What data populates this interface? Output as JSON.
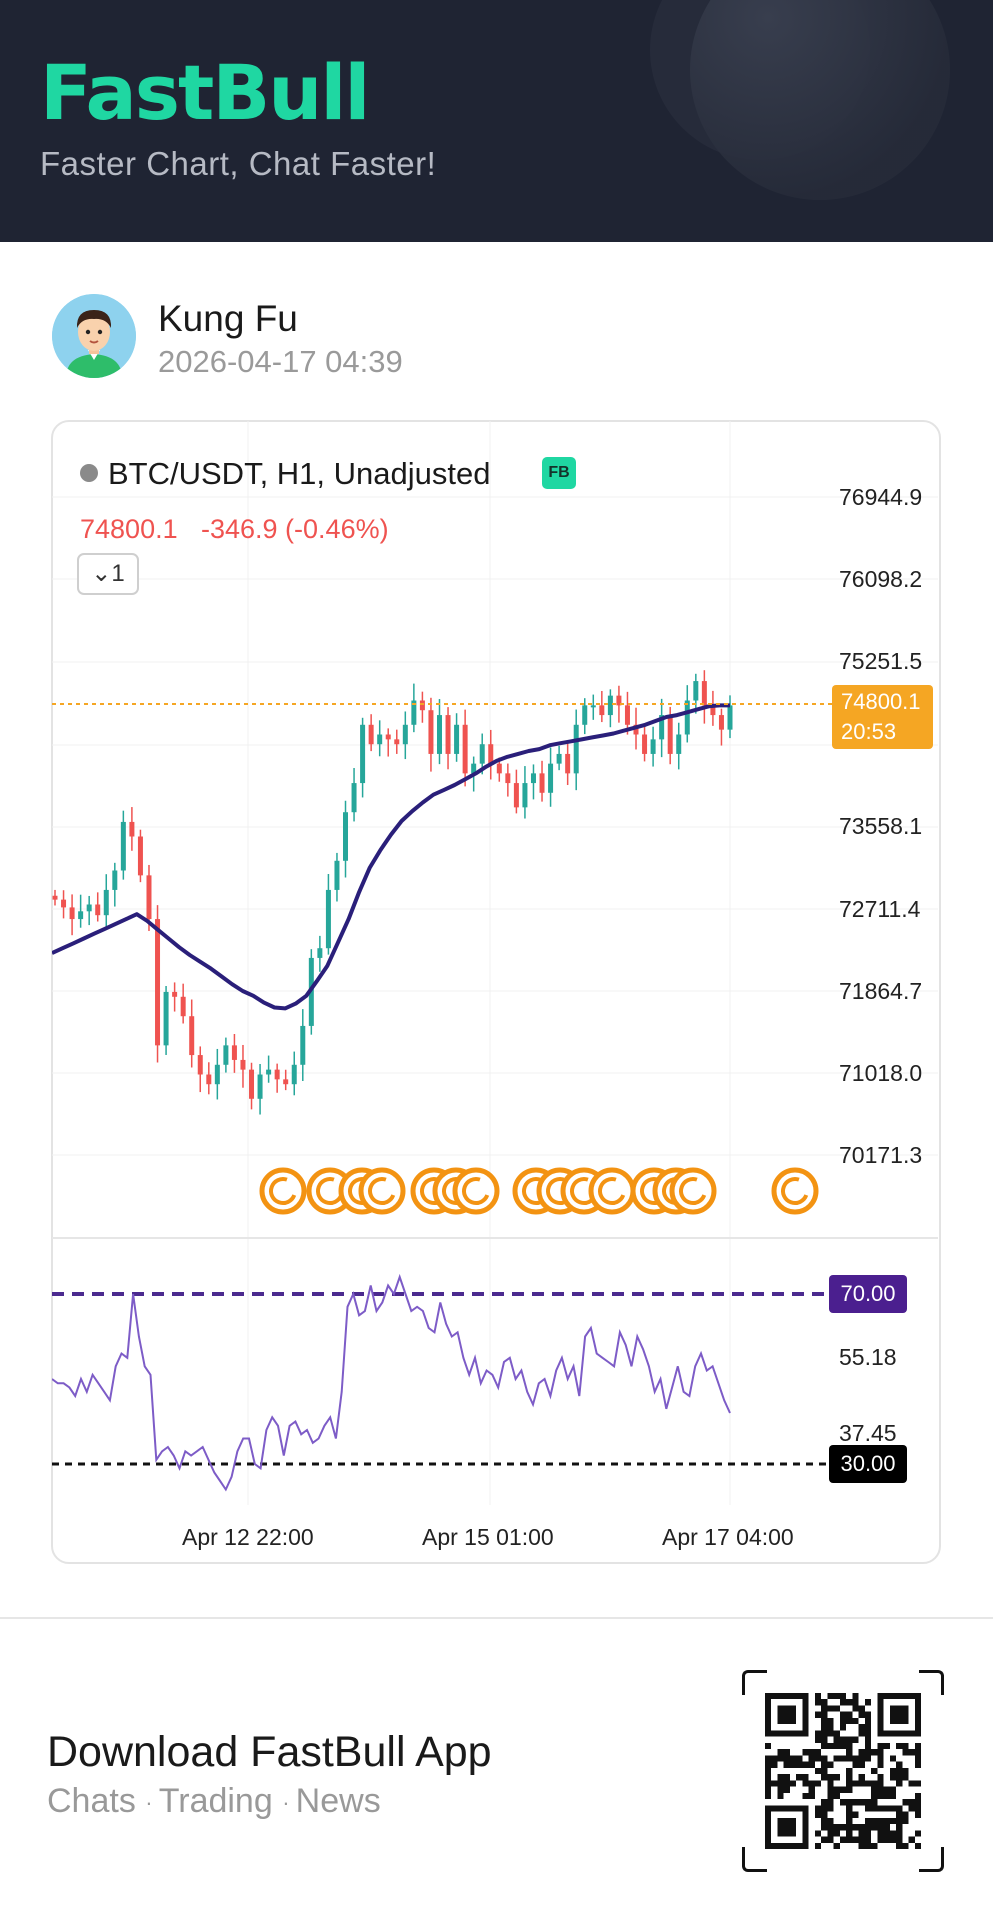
{
  "header": {
    "logo": "FastBull",
    "slogan": "Faster Chart, Chat Faster!"
  },
  "user": {
    "name": "Kung Fu",
    "time": "2026-04-17 04:39"
  },
  "chart": {
    "symbol": "BTC/USDT, H1, Unadjusted",
    "badge": "FB",
    "price": "74800.1",
    "change": "-346.9 (-0.46%)",
    "collapse_label": "1",
    "countdown": "20:53",
    "rsi_upper": "70.00",
    "rsi_lower": "30.00"
  },
  "chart_data": [
    {
      "type": "candlestick",
      "title": "BTC/USDT, H1, Unadjusted",
      "y_ticks": [
        "76944.9",
        "76098.2",
        "75251.5",
        "73558.1",
        "72711.4",
        "71864.7",
        "71018.0",
        "70171.3"
      ],
      "x_ticks": [
        "Apr 12 22:00",
        "Apr 15 01:00",
        "Apr 17 04:00"
      ],
      "ylim": [
        70171.3,
        76944.9
      ],
      "last_price": 74800.1,
      "ma_line_color": "#2a1f7a",
      "up_color": "#26a69a",
      "down_color": "#ef5350",
      "close_series": [
        72800,
        72720,
        72600,
        72680,
        72750,
        72640,
        72900,
        73100,
        73600,
        73450,
        73050,
        72600,
        71300,
        71850,
        71800,
        71600,
        71200,
        71000,
        70900,
        71100,
        71300,
        71150,
        71050,
        70750,
        71000,
        71050,
        70950,
        70900,
        71100,
        71500,
        72200,
        72300,
        72900,
        73200,
        73700,
        74000,
        74600,
        74400,
        74500,
        74450,
        74400,
        74600,
        74850,
        74750,
        74300,
        74700,
        74300,
        74600,
        74100,
        74200,
        74400,
        74200,
        74100,
        74000,
        73750,
        74000,
        74100,
        73900,
        74200,
        74300,
        74100,
        74600,
        74800,
        74800,
        74700,
        74900,
        74800,
        74600,
        74500,
        74300,
        74450,
        74700,
        74300,
        74500,
        74850,
        75050,
        74800,
        74700,
        74550,
        74800
      ],
      "ma_series": [
        72250,
        72300,
        72350,
        72400,
        72450,
        72500,
        72550,
        72600,
        72650,
        72580,
        72490,
        72400,
        72310,
        72230,
        72160,
        72090,
        72010,
        71930,
        71860,
        71810,
        71740,
        71690,
        71680,
        71730,
        71810,
        71960,
        72120,
        72360,
        72600,
        72880,
        73130,
        73310,
        73470,
        73610,
        73710,
        73800,
        73880,
        73930,
        73980,
        74040,
        74100,
        74170,
        74230,
        74270,
        74300,
        74330,
        74350,
        74390,
        74410,
        74430,
        74450,
        74470,
        74490,
        74510,
        74540,
        74570,
        74600,
        74640,
        74680,
        74700,
        74730,
        74760,
        74790,
        74800,
        74800
      ]
    },
    {
      "type": "line",
      "title": "RSI",
      "y_ticks": [
        "70.00",
        "55.18",
        "37.45",
        "30.00"
      ],
      "reference_lines": [
        70,
        30
      ],
      "line_color": "#7d5cc7",
      "values": [
        50,
        49,
        49,
        48,
        46,
        50,
        47,
        51,
        49,
        47,
        45,
        53,
        56,
        55,
        70,
        60,
        53,
        51,
        31,
        33,
        34,
        32,
        29,
        33,
        32,
        33,
        34,
        31,
        28,
        26,
        24,
        27,
        33,
        36,
        36,
        30,
        29,
        38,
        41,
        39,
        32,
        39,
        40,
        37,
        38,
        35,
        36,
        39,
        41,
        36,
        47,
        67,
        70,
        65,
        66,
        72,
        66,
        68,
        72,
        70,
        74,
        70,
        66,
        67,
        66,
        62,
        61,
        68,
        63,
        60,
        61,
        55,
        51,
        55,
        49,
        52,
        51,
        48,
        54,
        55,
        50,
        52,
        47,
        44,
        49,
        50,
        46,
        52,
        55,
        50,
        53,
        46,
        60,
        62,
        56,
        55,
        54,
        53,
        61,
        58,
        53,
        60,
        57,
        53,
        47,
        50,
        43,
        48,
        53,
        47,
        46,
        53,
        56,
        52,
        53,
        49,
        45,
        42
      ]
    }
  ],
  "footer": {
    "title": "Download FastBull App",
    "links": [
      "Chats",
      "Trading",
      "News"
    ]
  }
}
